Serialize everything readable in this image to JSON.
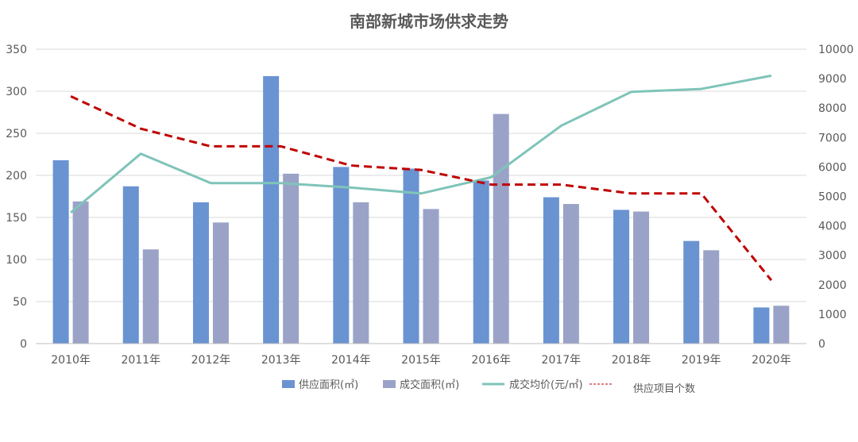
{
  "chart_data": {
    "type": "bar",
    "title": "南部新城市场供求走势",
    "categories": [
      "2010年",
      "2011年",
      "2012年",
      "2013年",
      "2014年",
      "2015年",
      "2016年",
      "2017年",
      "2018年",
      "2019年",
      "2020年"
    ],
    "y_left": {
      "ylim": [
        0,
        350
      ],
      "ticks": [
        "0",
        "50",
        "100",
        "150",
        "200",
        "250",
        "300",
        "350"
      ]
    },
    "y_right": {
      "ylim": [
        0,
        10000
      ],
      "ticks": [
        "0",
        "1000",
        "2000",
        "3000",
        "4000",
        "5000",
        "6000",
        "7000",
        "8000",
        "9000",
        "10000"
      ]
    },
    "grid": true,
    "legend_position": "bottom",
    "series": [
      {
        "name": "供应面积(㎡)",
        "type": "bar",
        "axis": "left",
        "color": "#6a93d2",
        "values": [
          218,
          187,
          168,
          318,
          210,
          208,
          194,
          174,
          159,
          122,
          43
        ]
      },
      {
        "name": "成交面积(㎡)",
        "type": "bar",
        "axis": "left",
        "color": "#9aa3c7",
        "values": [
          169,
          112,
          144,
          202,
          168,
          160,
          273,
          166,
          157,
          111,
          45
        ]
      },
      {
        "name": "成交均价(元/㎡)",
        "type": "line",
        "axis": "right",
        "color": "#7fc4b9",
        "values": [
          4450,
          6450,
          5450,
          5450,
          5300,
          5100,
          5650,
          7400,
          8550,
          8650,
          9100
        ]
      },
      {
        "name": "供应项目个数",
        "type": "line",
        "axis": "right",
        "color": "#c00000",
        "dashed": true,
        "values": [
          8400,
          7300,
          6700,
          6700,
          6050,
          5900,
          5400,
          5400,
          5100,
          5100,
          2150
        ]
      }
    ]
  }
}
